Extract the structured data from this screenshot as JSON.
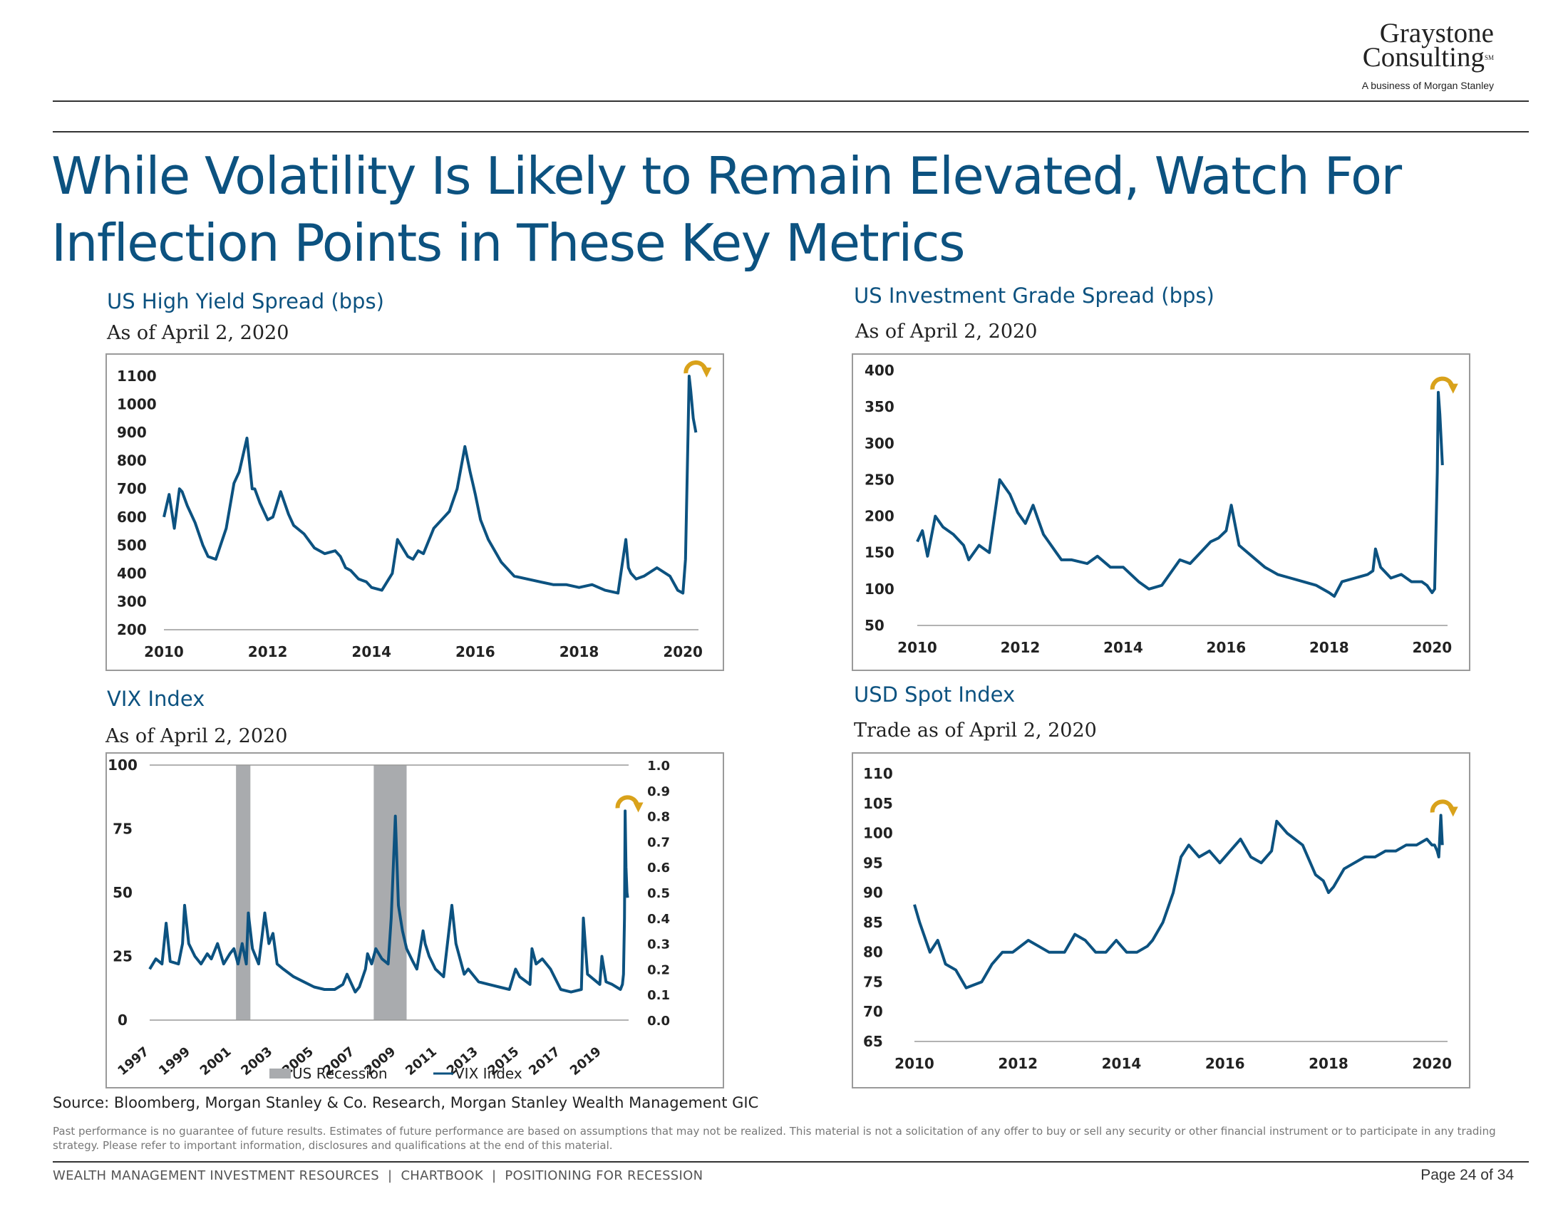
{
  "logo": {
    "line1": "Graystone",
    "line2": "Consulting",
    "sm": "SM",
    "tagline": "A business of Morgan Stanley"
  },
  "title": "While Volatility Is Likely to Remain Elevated, Watch For Inflection Points in These Key Metrics",
  "source": "Source: Bloomberg, Morgan Stanley & Co. Research, Morgan Stanley Wealth Management GIC",
  "disclaimer": "Past performance is no guarantee of future results. Estimates of future performance are based on assumptions that may not be realized. This material is not a solicitation of any offer to buy or sell any security or other financial instrument or to participate in any trading strategy. Please refer to important information, disclosures and qualifications at the end of this material.",
  "footer": {
    "left": "WEALTH MANAGEMENT INVESTMENT RESOURCES  |  CHARTBOOK  |  POSITIONING FOR RECESSION",
    "page": "Page 24 of 34"
  },
  "colors": {
    "series": "#0c5280",
    "accent": "#d9a21b",
    "recession": "#a9abae",
    "title": "#0c5280"
  },
  "chart_data": [
    {
      "id": "hy",
      "type": "line",
      "title": "US High Yield Spread (bps)",
      "subtitle": "As of April 2, 2020",
      "ylim": [
        200,
        1100
      ],
      "yticks": [
        "200",
        "300",
        "400",
        "500",
        "600",
        "700",
        "800",
        "900",
        "1000",
        "1100"
      ],
      "xlim": [
        2010,
        2020.3
      ],
      "xticks": [
        "2010",
        "2012",
        "2014",
        "2016",
        "2018",
        "2020"
      ],
      "x": [
        2010.0,
        2010.1,
        2010.2,
        2010.3,
        2010.35,
        2010.45,
        2010.6,
        2010.75,
        2010.85,
        2011.0,
        2011.2,
        2011.35,
        2011.45,
        2011.6,
        2011.7,
        2011.75,
        2011.85,
        2012.0,
        2012.1,
        2012.25,
        2012.4,
        2012.5,
        2012.7,
        2012.9,
        2013.1,
        2013.3,
        2013.4,
        2013.5,
        2013.6,
        2013.75,
        2013.9,
        2014.0,
        2014.2,
        2014.4,
        2014.5,
        2014.7,
        2014.8,
        2014.9,
        2015.0,
        2015.2,
        2015.4,
        2015.5,
        2015.65,
        2015.8,
        2015.9,
        2015.95,
        2016.0,
        2016.1,
        2016.25,
        2016.5,
        2016.75,
        2017.0,
        2017.25,
        2017.5,
        2017.75,
        2018.0,
        2018.25,
        2018.5,
        2018.75,
        2018.9,
        2018.95,
        2019.0,
        2019.1,
        2019.25,
        2019.5,
        2019.75,
        2019.9,
        2020.0,
        2020.05,
        2020.1,
        2020.12,
        2020.15,
        2020.2,
        2020.25
      ],
      "values": [
        600,
        680,
        560,
        700,
        690,
        640,
        580,
        500,
        460,
        450,
        560,
        720,
        760,
        880,
        700,
        700,
        650,
        590,
        600,
        690,
        610,
        570,
        540,
        490,
        470,
        480,
        460,
        420,
        410,
        380,
        370,
        350,
        340,
        400,
        520,
        460,
        450,
        480,
        470,
        560,
        600,
        620,
        700,
        850,
        760,
        720,
        680,
        590,
        520,
        440,
        390,
        380,
        370,
        360,
        360,
        350,
        360,
        340,
        330,
        520,
        420,
        400,
        380,
        390,
        420,
        390,
        340,
        330,
        450,
        900,
        1100,
        1050,
        950,
        900
      ]
    },
    {
      "id": "ig",
      "type": "line",
      "title": "US Investment Grade Spread (bps)",
      "subtitle": "As of April 2, 2020",
      "ylim": [
        50,
        400
      ],
      "yticks": [
        "50",
        "100",
        "150",
        "200",
        "250",
        "300",
        "350",
        "400"
      ],
      "xlim": [
        2010,
        2020.3
      ],
      "xticks": [
        "2010",
        "2012",
        "2014",
        "2016",
        "2018",
        "2020"
      ],
      "x": [
        2010.0,
        2010.1,
        2010.2,
        2010.35,
        2010.5,
        2010.7,
        2010.9,
        2011.0,
        2011.2,
        2011.4,
        2011.6,
        2011.7,
        2011.8,
        2011.95,
        2012.1,
        2012.25,
        2012.35,
        2012.45,
        2012.7,
        2012.8,
        2013.0,
        2013.3,
        2013.5,
        2013.75,
        2014.0,
        2014.3,
        2014.5,
        2014.75,
        2014.9,
        2015.1,
        2015.3,
        2015.5,
        2015.7,
        2015.85,
        2016.0,
        2016.1,
        2016.25,
        2016.5,
        2016.75,
        2017.0,
        2017.25,
        2017.5,
        2017.75,
        2018.0,
        2018.1,
        2018.25,
        2018.5,
        2018.75,
        2018.85,
        2018.9,
        2019.0,
        2019.2,
        2019.4,
        2019.6,
        2019.8,
        2019.9,
        2020.0,
        2020.05,
        2020.1,
        2020.12,
        2020.15,
        2020.2
      ],
      "values": [
        165,
        180,
        145,
        200,
        185,
        175,
        160,
        140,
        160,
        150,
        250,
        240,
        230,
        205,
        190,
        215,
        195,
        175,
        150,
        140,
        140,
        135,
        145,
        130,
        130,
        110,
        100,
        105,
        120,
        140,
        135,
        150,
        165,
        170,
        180,
        215,
        160,
        145,
        130,
        120,
        115,
        110,
        105,
        95,
        90,
        110,
        115,
        120,
        125,
        155,
        130,
        115,
        120,
        110,
        110,
        105,
        95,
        100,
        260,
        370,
        340,
        270
      ]
    },
    {
      "id": "vix",
      "type": "line",
      "title": "VIX Index",
      "subtitle": "As of April 2, 2020",
      "ylim": [
        0,
        100
      ],
      "yticks": [
        "0",
        "25",
        "50",
        "75",
        "100"
      ],
      "y2ticks": [
        "0.0",
        "0.1",
        "0.2",
        "0.3",
        "0.4",
        "0.5",
        "0.6",
        "0.7",
        "0.8",
        "0.9",
        "1.0"
      ],
      "xlim": [
        1997,
        2020.3
      ],
      "xticks": [
        "1997",
        "1999",
        "2001",
        "2003",
        "2005",
        "2007",
        "2009",
        "2011",
        "2013",
        "2015",
        "2017",
        "2019"
      ],
      "recessions": [
        [
          2001.2,
          2001.9
        ],
        [
          2007.9,
          2009.5
        ]
      ],
      "legend": {
        "recession": "US Recession",
        "series": "VIX Index"
      },
      "x": [
        1997.0,
        1997.3,
        1997.6,
        1997.8,
        1998.0,
        1998.4,
        1998.6,
        1998.7,
        1998.9,
        1999.2,
        1999.5,
        1999.8,
        2000.0,
        2000.3,
        2000.6,
        2000.9,
        2001.1,
        2001.3,
        2001.5,
        2001.7,
        2001.8,
        2002.0,
        2002.3,
        2002.5,
        2002.6,
        2002.8,
        2003.0,
        2003.2,
        2003.5,
        2004.0,
        2004.5,
        2005.0,
        2005.5,
        2006.0,
        2006.4,
        2006.6,
        2007.0,
        2007.2,
        2007.5,
        2007.6,
        2007.8,
        2008.0,
        2008.3,
        2008.6,
        2008.75,
        2008.85,
        2008.95,
        2009.1,
        2009.3,
        2009.5,
        2009.8,
        2010.0,
        2010.3,
        2010.4,
        2010.6,
        2010.9,
        2011.3,
        2011.6,
        2011.7,
        2011.9,
        2012.3,
        2012.5,
        2013.0,
        2013.5,
        2014.0,
        2014.5,
        2014.8,
        2015.0,
        2015.5,
        2015.6,
        2015.8,
        2016.1,
        2016.5,
        2017.0,
        2017.5,
        2018.0,
        2018.1,
        2018.3,
        2018.9,
        2019.0,
        2019.2,
        2019.5,
        2019.9,
        2020.0,
        2020.05,
        2020.1,
        2020.13,
        2020.17,
        2020.22,
        2020.25
      ],
      "values": [
        20,
        24,
        22,
        38,
        23,
        22,
        30,
        45,
        30,
        25,
        22,
        26,
        24,
        30,
        22,
        26,
        28,
        22,
        30,
        22,
        42,
        28,
        22,
        35,
        42,
        30,
        34,
        22,
        20,
        17,
        15,
        13,
        12,
        12,
        14,
        18,
        11,
        13,
        20,
        26,
        22,
        28,
        24,
        22,
        40,
        60,
        80,
        45,
        35,
        28,
        23,
        20,
        35,
        30,
        25,
        20,
        17,
        38,
        45,
        30,
        18,
        20,
        15,
        14,
        13,
        12,
        20,
        17,
        14,
        28,
        22,
        24,
        20,
        12,
        11,
        12,
        40,
        18,
        14,
        25,
        15,
        14,
        12,
        14,
        18,
        40,
        82,
        60,
        50,
        48
      ]
    },
    {
      "id": "usd",
      "type": "line",
      "title": "USD Spot Index",
      "subtitle": "Trade as of April 2, 2020",
      "ylim": [
        65,
        110
      ],
      "yticks": [
        "65",
        "70",
        "75",
        "80",
        "85",
        "90",
        "95",
        "100",
        "105",
        "110"
      ],
      "xlim": [
        2010,
        2020.3
      ],
      "xticks": [
        "2010",
        "2012",
        "2014",
        "2016",
        "2018",
        "2020"
      ],
      "x": [
        2010.0,
        2010.1,
        2010.3,
        2010.45,
        2010.6,
        2010.8,
        2011.0,
        2011.3,
        2011.5,
        2011.7,
        2011.9,
        2012.2,
        2012.4,
        2012.6,
        2012.9,
        2013.1,
        2013.3,
        2013.5,
        2013.7,
        2013.9,
        2014.1,
        2014.3,
        2014.5,
        2014.6,
        2014.8,
        2015.0,
        2015.15,
        2015.3,
        2015.5,
        2015.7,
        2015.9,
        2016.1,
        2016.3,
        2016.5,
        2016.7,
        2016.9,
        2017.0,
        2017.2,
        2017.5,
        2017.75,
        2017.9,
        2018.0,
        2018.1,
        2018.3,
        2018.5,
        2018.7,
        2018.9,
        2019.1,
        2019.3,
        2019.5,
        2019.7,
        2019.9,
        2020.0,
        2020.05,
        2020.1,
        2020.13,
        2020.17,
        2020.2
      ],
      "values": [
        88,
        85,
        80,
        82,
        78,
        77,
        74,
        75,
        78,
        80,
        80,
        82,
        81,
        80,
        80,
        83,
        82,
        80,
        80,
        82,
        80,
        80,
        81,
        82,
        85,
        90,
        96,
        98,
        96,
        97,
        95,
        97,
        99,
        96,
        95,
        97,
        102,
        100,
        98,
        93,
        92,
        90,
        91,
        94,
        95,
        96,
        96,
        97,
        97,
        98,
        98,
        99,
        98,
        98,
        97,
        96,
        103,
        98
      ]
    }
  ]
}
